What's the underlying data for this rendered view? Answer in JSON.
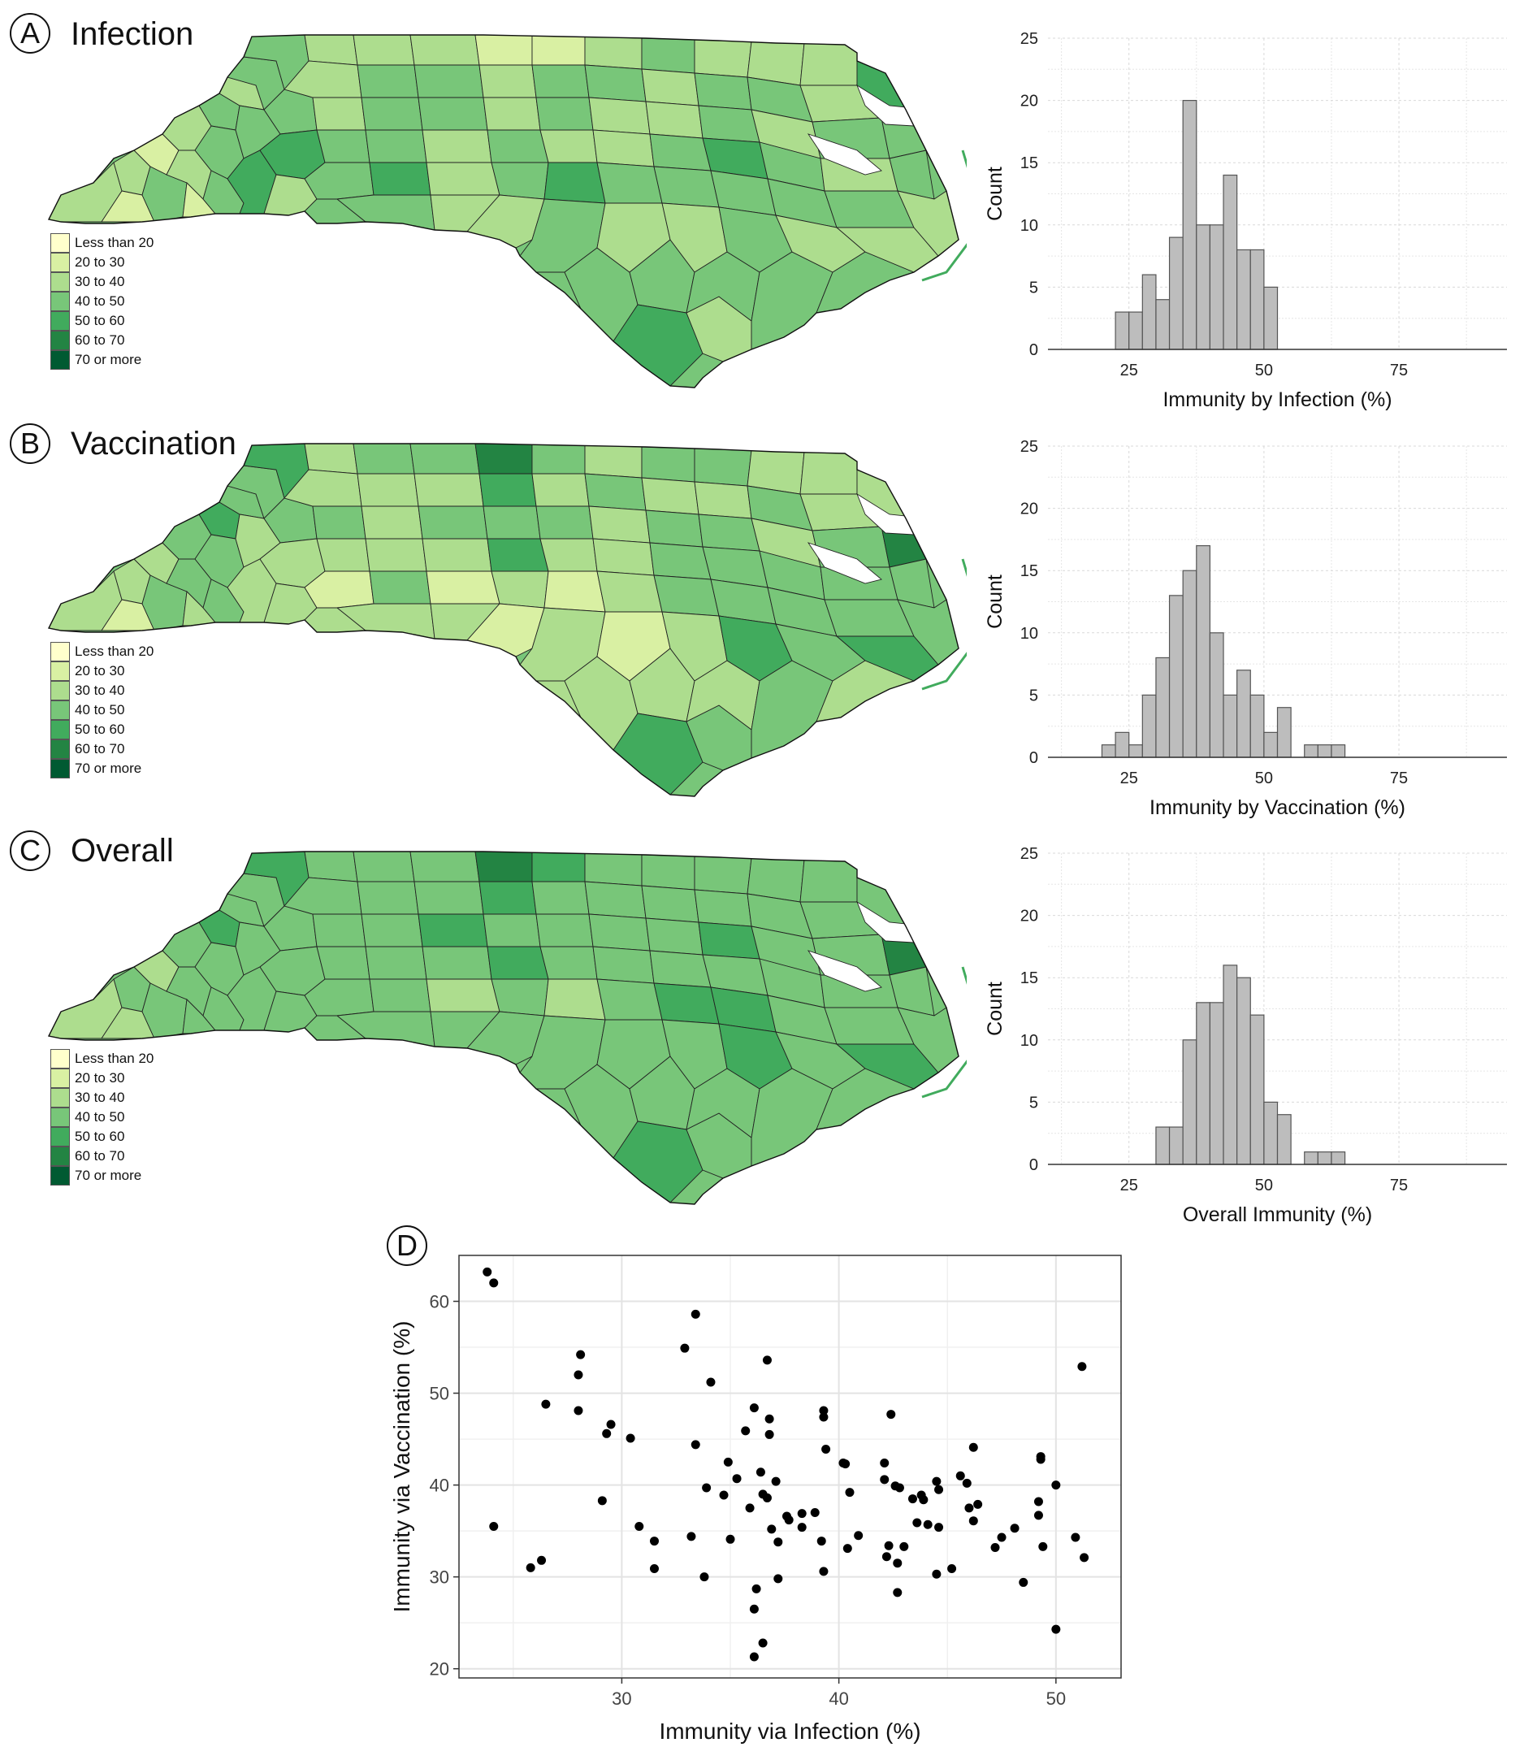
{
  "panels": [
    {
      "letter": "A",
      "title": "Infection",
      "legend": [
        "Less than 20",
        "20 to 30",
        "30 to 40",
        "40 to 50",
        "50 to 60",
        "60 to 70",
        "70 or more"
      ],
      "legend_colors": [
        "#ffffcc",
        "#d9f0a3",
        "#addd8e",
        "#78c679",
        "#41ab5d",
        "#238443",
        "#005a32"
      ]
    },
    {
      "letter": "B",
      "title": "Vaccination",
      "legend": [
        "Less than 20",
        "20 to 30",
        "30 to 40",
        "40 to 50",
        "50 to 60",
        "60 to 70",
        "70 or more"
      ],
      "legend_colors": [
        "#ffffcc",
        "#d9f0a3",
        "#addd8e",
        "#78c679",
        "#41ab5d",
        "#238443",
        "#005a32"
      ]
    },
    {
      "letter": "C",
      "title": "Overall",
      "legend": [
        "Less than 20",
        "20 to 30",
        "30 to 40",
        "40 to 50",
        "50 to 60",
        "60 to 70",
        "70 or more"
      ],
      "legend_colors": [
        "#ffffcc",
        "#d9f0a3",
        "#addd8e",
        "#78c679",
        "#41ab5d",
        "#238443",
        "#005a32"
      ]
    },
    {
      "letter": "D"
    }
  ],
  "chart_data": [
    {
      "type": "bar",
      "subtype": "histogram",
      "xlabel": "Immunity by Infection (%)",
      "ylabel": "Count",
      "xlim": [
        10,
        95
      ],
      "ylim": [
        0,
        25
      ],
      "x_ticks": [
        "25",
        "50",
        "75"
      ],
      "y_ticks": [
        "0",
        "5",
        "10",
        "15",
        "20",
        "25"
      ],
      "bin_width": 2.5,
      "bin_starts": [
        22.5,
        25,
        27.5,
        30,
        32.5,
        35,
        37.5,
        40,
        42.5,
        45,
        47.5,
        50
      ],
      "values": [
        3,
        3,
        6,
        4,
        9,
        20,
        10,
        10,
        14,
        8,
        8,
        5
      ],
      "bar_color": "#bdbdbd",
      "grid": true
    },
    {
      "type": "bar",
      "subtype": "histogram",
      "xlabel": "Immunity by Vaccination (%)",
      "ylabel": "Count",
      "xlim": [
        10,
        95
      ],
      "ylim": [
        0,
        25
      ],
      "x_ticks": [
        "25",
        "50",
        "75"
      ],
      "y_ticks": [
        "0",
        "5",
        "10",
        "15",
        "20",
        "25"
      ],
      "bin_width": 2.5,
      "bin_starts": [
        20,
        22.5,
        25,
        27.5,
        30,
        32.5,
        35,
        37.5,
        40,
        42.5,
        45,
        47.5,
        50,
        52.5,
        55,
        57.5,
        60,
        62.5
      ],
      "values": [
        1,
        2,
        1,
        5,
        8,
        13,
        15,
        17,
        10,
        5,
        7,
        5,
        2,
        4,
        0,
        1,
        1,
        1
      ],
      "bar_color": "#bdbdbd",
      "grid": true
    },
    {
      "type": "bar",
      "subtype": "histogram",
      "xlabel": "Overall Immunity (%)",
      "ylabel": "Count",
      "xlim": [
        10,
        95
      ],
      "ylim": [
        0,
        25
      ],
      "x_ticks": [
        "25",
        "50",
        "75"
      ],
      "y_ticks": [
        "0",
        "5",
        "10",
        "15",
        "20",
        "25"
      ],
      "bin_width": 2.5,
      "bin_starts": [
        30,
        32.5,
        35,
        37.5,
        40,
        42.5,
        45,
        47.5,
        50,
        52.5,
        55,
        57.5,
        60,
        62.5
      ],
      "values": [
        3,
        3,
        10,
        13,
        13,
        16,
        15,
        12,
        5,
        4,
        0,
        1,
        1,
        1
      ],
      "bar_color": "#bdbdbd",
      "grid": true
    },
    {
      "type": "scatter",
      "xlabel": "Immunity via Infection (%)",
      "ylabel": "Immunity via Vaccination (%)",
      "xlim": [
        22.5,
        53
      ],
      "ylim": [
        19,
        65
      ],
      "x_ticks": [
        "30",
        "40",
        "50"
      ],
      "y_ticks": [
        "20",
        "30",
        "40",
        "50",
        "60"
      ],
      "point_color": "#000000",
      "grid": true,
      "points": [
        [
          23.8,
          63.2
        ],
        [
          24.1,
          62.0
        ],
        [
          24.1,
          35.5
        ],
        [
          25.8,
          31.0
        ],
        [
          26.3,
          31.8
        ],
        [
          26.5,
          48.8
        ],
        [
          28.0,
          52.0
        ],
        [
          28.1,
          54.2
        ],
        [
          28.0,
          48.1
        ],
        [
          29.1,
          38.3
        ],
        [
          29.3,
          45.6
        ],
        [
          29.5,
          46.6
        ],
        [
          30.4,
          45.1
        ],
        [
          30.8,
          35.5
        ],
        [
          31.5,
          33.9
        ],
        [
          31.5,
          30.9
        ],
        [
          32.9,
          54.9
        ],
        [
          33.2,
          34.4
        ],
        [
          33.4,
          58.6
        ],
        [
          33.4,
          44.4
        ],
        [
          33.8,
          30.0
        ],
        [
          33.9,
          39.7
        ],
        [
          34.1,
          51.2
        ],
        [
          34.7,
          38.9
        ],
        [
          34.9,
          42.5
        ],
        [
          35.0,
          34.1
        ],
        [
          35.3,
          40.7
        ],
        [
          35.7,
          45.9
        ],
        [
          35.9,
          37.5
        ],
        [
          36.1,
          48.4
        ],
        [
          36.1,
          26.5
        ],
        [
          36.2,
          28.7
        ],
        [
          36.1,
          21.3
        ],
        [
          36.4,
          41.4
        ],
        [
          36.5,
          39.0
        ],
        [
          36.5,
          22.8
        ],
        [
          36.7,
          53.6
        ],
        [
          36.8,
          47.2
        ],
        [
          36.8,
          45.5
        ],
        [
          36.7,
          38.6
        ],
        [
          36.9,
          35.2
        ],
        [
          37.1,
          40.4
        ],
        [
          37.2,
          33.8
        ],
        [
          37.2,
          29.8
        ],
        [
          37.6,
          36.6
        ],
        [
          37.7,
          36.2
        ],
        [
          38.3,
          36.9
        ],
        [
          38.3,
          35.4
        ],
        [
          38.9,
          37.0
        ],
        [
          39.2,
          33.9
        ],
        [
          39.3,
          48.1
        ],
        [
          39.3,
          47.4
        ],
        [
          39.3,
          30.6
        ],
        [
          39.4,
          43.9
        ],
        [
          40.2,
          42.4
        ],
        [
          40.3,
          42.3
        ],
        [
          40.5,
          39.2
        ],
        [
          40.4,
          33.1
        ],
        [
          40.9,
          34.5
        ],
        [
          42.1,
          42.4
        ],
        [
          42.1,
          40.6
        ],
        [
          42.2,
          32.2
        ],
        [
          42.3,
          33.4
        ],
        [
          42.4,
          47.7
        ],
        [
          42.6,
          39.9
        ],
        [
          42.7,
          31.5
        ],
        [
          42.8,
          39.7
        ],
        [
          42.7,
          28.3
        ],
        [
          43.0,
          33.3
        ],
        [
          43.4,
          38.5
        ],
        [
          43.6,
          35.9
        ],
        [
          43.8,
          38.9
        ],
        [
          43.9,
          38.4
        ],
        [
          44.1,
          35.7
        ],
        [
          44.5,
          40.4
        ],
        [
          44.6,
          39.5
        ],
        [
          44.6,
          35.4
        ],
        [
          44.5,
          30.3
        ],
        [
          45.2,
          30.9
        ],
        [
          45.6,
          41.0
        ],
        [
          45.9,
          40.2
        ],
        [
          46.0,
          37.5
        ],
        [
          46.2,
          44.1
        ],
        [
          46.2,
          36.1
        ],
        [
          46.4,
          37.9
        ],
        [
          47.2,
          33.2
        ],
        [
          47.5,
          34.3
        ],
        [
          48.1,
          35.3
        ],
        [
          48.5,
          29.4
        ],
        [
          49.2,
          38.2
        ],
        [
          49.2,
          36.7
        ],
        [
          49.3,
          43.1
        ],
        [
          49.3,
          42.8
        ],
        [
          49.4,
          33.3
        ],
        [
          50.0,
          40.0
        ],
        [
          50.0,
          24.3
        ],
        [
          50.9,
          34.3
        ],
        [
          51.2,
          52.9
        ],
        [
          51.3,
          32.1
        ]
      ]
    }
  ]
}
